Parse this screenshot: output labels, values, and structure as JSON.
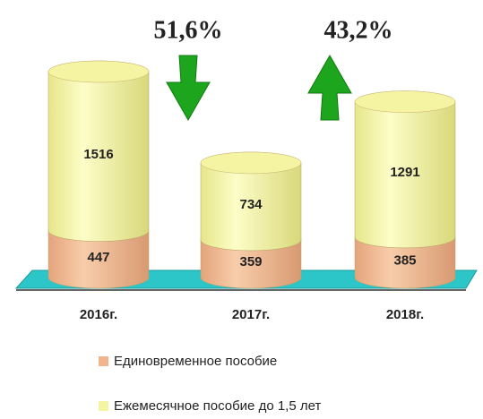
{
  "chart_data": {
    "type": "bar3d-stacked",
    "categories": [
      "2016г.",
      "2017г.",
      "2018г."
    ],
    "series": [
      {
        "name": "Единовременное пособие",
        "color": "#f2b48c",
        "values": [
          447,
          359,
          385
        ]
      },
      {
        "name": "Ежемесячное пособие  до 1,5 лет",
        "color": "#f4f4a2",
        "values": [
          1516,
          734,
          1291
        ]
      }
    ],
    "annotations": [
      "51,6%",
      "43,2%"
    ]
  }
}
